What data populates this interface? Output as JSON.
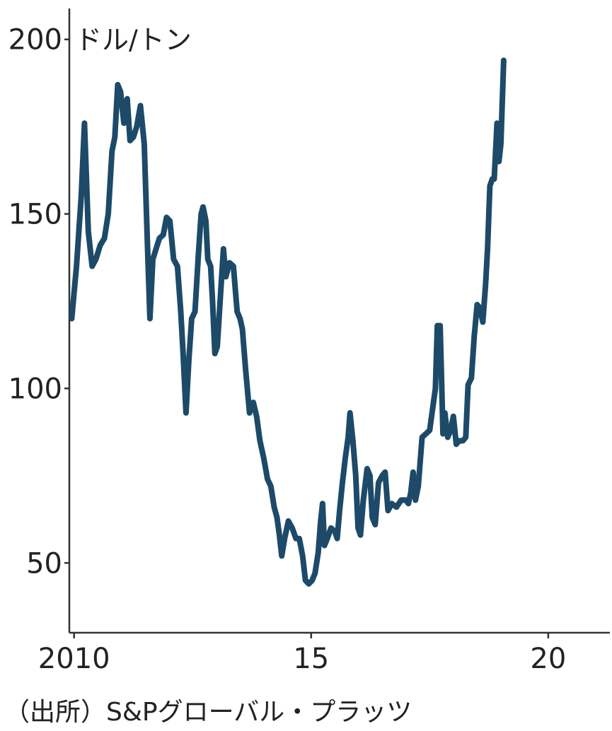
{
  "chart_data": {
    "type": "line",
    "ylabel": "ドル/トン",
    "xlabel": "",
    "title": "",
    "ylim": [
      30,
      204
    ],
    "xlim": [
      2009.9,
      2021.3
    ],
    "grid": false,
    "legend": "none",
    "x_ticks": [
      {
        "value": 2010,
        "label": "2010"
      },
      {
        "value": 2015,
        "label": "15"
      },
      {
        "value": 2020,
        "label": "20"
      }
    ],
    "y_ticks": [
      {
        "value": 50,
        "label": "50"
      },
      {
        "value": 100,
        "label": "100"
      },
      {
        "value": 150,
        "label": "150"
      },
      {
        "value": 200,
        "label": "200"
      }
    ],
    "series": [
      {
        "color": "#1d4a68",
        "points": [
          [
            2009.95,
            120
          ],
          [
            2010.05,
            135
          ],
          [
            2010.15,
            155
          ],
          [
            2010.22,
            176
          ],
          [
            2010.3,
            145
          ],
          [
            2010.38,
            135
          ],
          [
            2010.46,
            137
          ],
          [
            2010.55,
            141
          ],
          [
            2010.64,
            143
          ],
          [
            2010.72,
            150
          ],
          [
            2010.8,
            168
          ],
          [
            2010.86,
            172
          ],
          [
            2010.92,
            187
          ],
          [
            2010.98,
            185
          ],
          [
            2011.05,
            176
          ],
          [
            2011.12,
            183
          ],
          [
            2011.18,
            171
          ],
          [
            2011.25,
            172
          ],
          [
            2011.32,
            175
          ],
          [
            2011.4,
            181
          ],
          [
            2011.48,
            170
          ],
          [
            2011.55,
            140
          ],
          [
            2011.6,
            120
          ],
          [
            2011.66,
            137
          ],
          [
            2011.73,
            140
          ],
          [
            2011.8,
            143
          ],
          [
            2011.88,
            144
          ],
          [
            2011.95,
            149
          ],
          [
            2012.02,
            148
          ],
          [
            2012.1,
            137
          ],
          [
            2012.18,
            135
          ],
          [
            2012.25,
            122
          ],
          [
            2012.3,
            110
          ],
          [
            2012.36,
            93
          ],
          [
            2012.42,
            108
          ],
          [
            2012.48,
            120
          ],
          [
            2012.55,
            122
          ],
          [
            2012.62,
            138
          ],
          [
            2012.68,
            150
          ],
          [
            2012.72,
            152
          ],
          [
            2012.78,
            148
          ],
          [
            2012.82,
            137
          ],
          [
            2012.88,
            135
          ],
          [
            2012.92,
            125
          ],
          [
            2012.97,
            110
          ],
          [
            2013.02,
            112
          ],
          [
            2013.08,
            125
          ],
          [
            2013.15,
            140
          ],
          [
            2013.2,
            132
          ],
          [
            2013.28,
            136
          ],
          [
            2013.36,
            135
          ],
          [
            2013.44,
            122
          ],
          [
            2013.5,
            120
          ],
          [
            2013.55,
            117
          ],
          [
            2013.62,
            105
          ],
          [
            2013.7,
            93
          ],
          [
            2013.78,
            96
          ],
          [
            2013.85,
            92
          ],
          [
            2013.92,
            85
          ],
          [
            2014.0,
            80
          ],
          [
            2014.08,
            74
          ],
          [
            2014.15,
            72
          ],
          [
            2014.22,
            66
          ],
          [
            2014.28,
            63
          ],
          [
            2014.33,
            58
          ],
          [
            2014.38,
            52
          ],
          [
            2014.44,
            57
          ],
          [
            2014.52,
            62
          ],
          [
            2014.6,
            60
          ],
          [
            2014.68,
            57
          ],
          [
            2014.75,
            57
          ],
          [
            2014.82,
            52
          ],
          [
            2014.88,
            45
          ],
          [
            2014.95,
            44
          ],
          [
            2015.02,
            45
          ],
          [
            2015.08,
            47
          ],
          [
            2015.15,
            53
          ],
          [
            2015.2,
            62
          ],
          [
            2015.24,
            67
          ],
          [
            2015.28,
            55
          ],
          [
            2015.34,
            57
          ],
          [
            2015.42,
            60
          ],
          [
            2015.5,
            59
          ],
          [
            2015.55,
            57
          ],
          [
            2015.6,
            65
          ],
          [
            2015.66,
            73
          ],
          [
            2015.72,
            80
          ],
          [
            2015.78,
            86
          ],
          [
            2015.82,
            93
          ],
          [
            2015.88,
            85
          ],
          [
            2015.94,
            75
          ],
          [
            2015.99,
            60
          ],
          [
            2016.04,
            58
          ],
          [
            2016.1,
            68
          ],
          [
            2016.18,
            77
          ],
          [
            2016.24,
            75
          ],
          [
            2016.29,
            63
          ],
          [
            2016.35,
            61
          ],
          [
            2016.42,
            73
          ],
          [
            2016.5,
            75
          ],
          [
            2016.56,
            76
          ],
          [
            2016.62,
            65
          ],
          [
            2016.7,
            67
          ],
          [
            2016.8,
            66
          ],
          [
            2016.9,
            68
          ],
          [
            2017.0,
            68
          ],
          [
            2017.05,
            67
          ],
          [
            2017.1,
            70
          ],
          [
            2017.15,
            76
          ],
          [
            2017.2,
            68
          ],
          [
            2017.26,
            72
          ],
          [
            2017.34,
            86
          ],
          [
            2017.42,
            87
          ],
          [
            2017.5,
            88
          ],
          [
            2017.58,
            96
          ],
          [
            2017.62,
            100
          ],
          [
            2017.66,
            118
          ],
          [
            2017.72,
            118
          ],
          [
            2017.78,
            87
          ],
          [
            2017.82,
            93
          ],
          [
            2017.88,
            86
          ],
          [
            2017.94,
            88
          ],
          [
            2018.0,
            92
          ],
          [
            2018.06,
            84
          ],
          [
            2018.12,
            85
          ],
          [
            2018.2,
            85
          ],
          [
            2018.26,
            86
          ],
          [
            2018.31,
            101
          ],
          [
            2018.38,
            103
          ],
          [
            2018.44,
            115
          ],
          [
            2018.5,
            124
          ],
          [
            2018.56,
            123
          ],
          [
            2018.62,
            119
          ],
          [
            2018.68,
            130
          ],
          [
            2018.72,
            140
          ],
          [
            2018.77,
            158
          ],
          [
            2018.82,
            160
          ],
          [
            2018.86,
            160
          ],
          [
            2018.92,
            176
          ],
          [
            2018.96,
            165
          ],
          [
            2019.0,
            170
          ],
          [
            2019.06,
            194
          ]
        ]
      }
    ]
  },
  "source_note": "（出所）S&Pグローバル・プラッツ"
}
